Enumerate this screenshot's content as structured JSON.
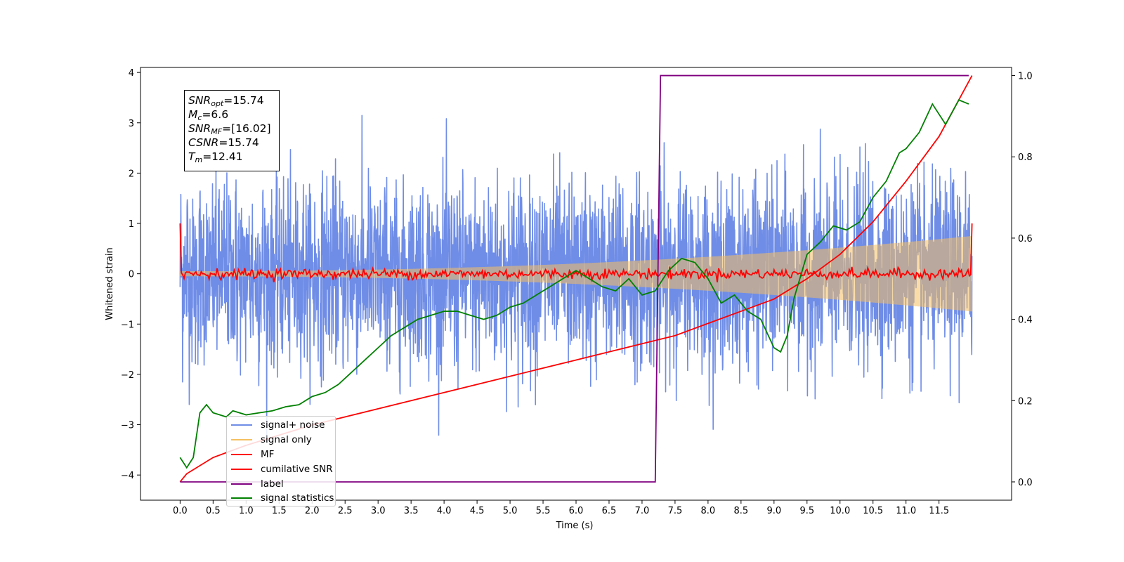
{
  "chart_data": {
    "type": "line",
    "xlabel": "Time (s)",
    "ylabel": "Whitened strain",
    "xlim": [
      -0.6,
      12.6
    ],
    "ylim": [
      -4.5,
      4.1
    ],
    "y2lim": [
      -0.045,
      1.02
    ],
    "x_ticks": [
      "0.0",
      "0.5",
      "1.0",
      "1.5",
      "2.0",
      "2.5",
      "3.0",
      "3.5",
      "4.0",
      "4.5",
      "5.0",
      "5.5",
      "6.0",
      "6.5",
      "7.0",
      "7.5",
      "8.0",
      "8.5",
      "9.0",
      "9.5",
      "10.0",
      "10.5",
      "11.0",
      "11.5"
    ],
    "y_ticks": [
      "4",
      "3",
      "2",
      "1",
      "0",
      "−1",
      "−2",
      "−3",
      "−4"
    ],
    "y2_ticks": [
      "1.0",
      "0.8",
      "0.6",
      "0.4",
      "0.2",
      "0.0"
    ],
    "grid": false,
    "legend_placement": "lower-left",
    "annotations": {
      "snr_opt": "=15.74",
      "mc": "=6.6",
      "snr_mf": "=[16.02]",
      "csnr": "=15.74",
      "tm": "=12.41"
    },
    "series": [
      {
        "name": "signal+ noise",
        "axis": "left",
        "color": "#6f8de6",
        "noise_std": 0.85,
        "t_range": [
          0,
          12
        ],
        "description_value": "white noise plus chirp"
      },
      {
        "name": "signal only",
        "axis": "left",
        "color": "#f5c060",
        "amplitude_start": 0.05,
        "amplitude_end": 0.75,
        "t_range": [
          0,
          12
        ]
      },
      {
        "name": "MF",
        "axis": "left",
        "color": "#ff0000",
        "t_range": [
          0,
          12
        ],
        "edge_values": [
          1.0,
          1.0
        ],
        "noise_std": 0.05
      },
      {
        "name": "cumilative SNR",
        "axis": "right",
        "color": "#ff0000",
        "x": [
          0,
          0.1,
          0.5,
          1,
          2,
          3,
          4,
          5,
          6,
          7,
          7.5,
          8,
          8.5,
          9,
          9.5,
          10,
          10.5,
          11,
          11.5,
          12
        ],
        "y": [
          0.0,
          0.02,
          0.06,
          0.09,
          0.14,
          0.18,
          0.22,
          0.26,
          0.3,
          0.34,
          0.36,
          0.39,
          0.42,
          0.45,
          0.5,
          0.56,
          0.64,
          0.74,
          0.85,
          1.0
        ]
      },
      {
        "name": "label",
        "axis": "right",
        "color": "#800080",
        "x": [
          0,
          7.2,
          7.28,
          11.95
        ],
        "y": [
          0,
          0,
          1,
          1
        ]
      },
      {
        "name": "signal statistics",
        "axis": "right",
        "color": "#008000",
        "x": [
          0,
          0.1,
          0.2,
          0.3,
          0.4,
          0.5,
          0.6,
          0.7,
          0.8,
          0.9,
          1.0,
          1.2,
          1.4,
          1.6,
          1.8,
          2.0,
          2.2,
          2.4,
          2.6,
          2.8,
          3.0,
          3.2,
          3.4,
          3.6,
          3.8,
          4.0,
          4.2,
          4.4,
          4.6,
          4.8,
          5.0,
          5.2,
          5.4,
          5.6,
          5.8,
          6.0,
          6.2,
          6.4,
          6.6,
          6.8,
          7.0,
          7.2,
          7.4,
          7.6,
          7.8,
          8.0,
          8.2,
          8.4,
          8.6,
          8.8,
          9.0,
          9.1,
          9.2,
          9.3,
          9.5,
          9.7,
          9.9,
          10.1,
          10.3,
          10.5,
          10.7,
          10.9,
          11.0,
          11.2,
          11.4,
          11.6,
          11.8,
          11.95
        ],
        "y": [
          0.06,
          0.035,
          0.06,
          0.17,
          0.19,
          0.17,
          0.165,
          0.16,
          0.175,
          0.17,
          0.165,
          0.17,
          0.175,
          0.185,
          0.19,
          0.21,
          0.22,
          0.24,
          0.27,
          0.3,
          0.33,
          0.36,
          0.38,
          0.4,
          0.41,
          0.42,
          0.42,
          0.41,
          0.4,
          0.41,
          0.43,
          0.44,
          0.46,
          0.48,
          0.5,
          0.52,
          0.5,
          0.48,
          0.47,
          0.5,
          0.46,
          0.47,
          0.52,
          0.55,
          0.54,
          0.5,
          0.44,
          0.46,
          0.42,
          0.4,
          0.33,
          0.32,
          0.36,
          0.45,
          0.56,
          0.59,
          0.63,
          0.62,
          0.64,
          0.7,
          0.74,
          0.81,
          0.82,
          0.86,
          0.93,
          0.88,
          0.94,
          0.93
        ]
      }
    ]
  }
}
